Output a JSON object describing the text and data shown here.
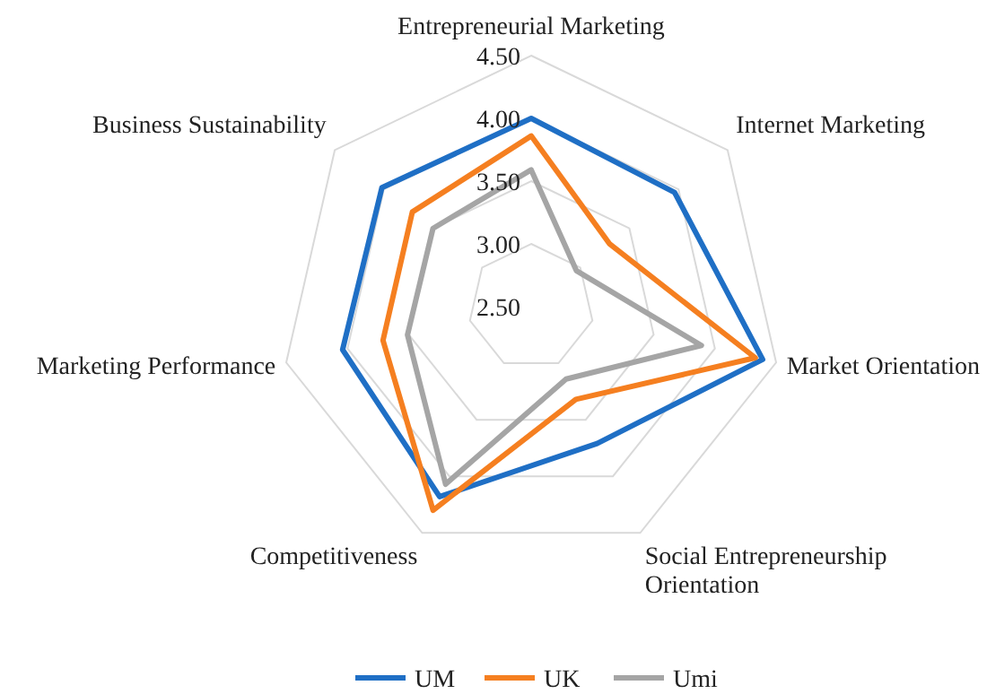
{
  "chart_data": {
    "type": "radar",
    "categories": [
      "Entrepreneurial Marketing",
      "Internet Marketing",
      "Market Orientation",
      "Social Entrepreneurship Orientation",
      "Competitiveness",
      "Marketing Performance",
      "Business Sustainability"
    ],
    "series": [
      {
        "name": "UM",
        "color": "#1f6fc5",
        "values": [
          4.0,
          3.96,
          4.39,
          3.71,
          4.18,
          4.04,
          4.02
        ]
      },
      {
        "name": "UK",
        "color": "#f57f20",
        "values": [
          3.86,
          3.3,
          4.33,
          3.32,
          4.3,
          3.71,
          3.71
        ]
      },
      {
        "name": "Umi",
        "color": "#a5a5a5",
        "values": [
          3.59,
          2.96,
          3.89,
          3.14,
          4.07,
          3.51,
          3.5
        ]
      }
    ],
    "ylim": [
      2.5,
      4.5
    ],
    "yticks": [
      {
        "value": 2.5,
        "label": "2.50"
      },
      {
        "value": 3,
        "label": "3.00"
      },
      {
        "value": 3.5,
        "label": "3.50"
      },
      {
        "value": 4,
        "label": "4.00"
      },
      {
        "value": 4.5,
        "label": "4.50"
      }
    ],
    "grid": true,
    "legend": "bottom"
  }
}
